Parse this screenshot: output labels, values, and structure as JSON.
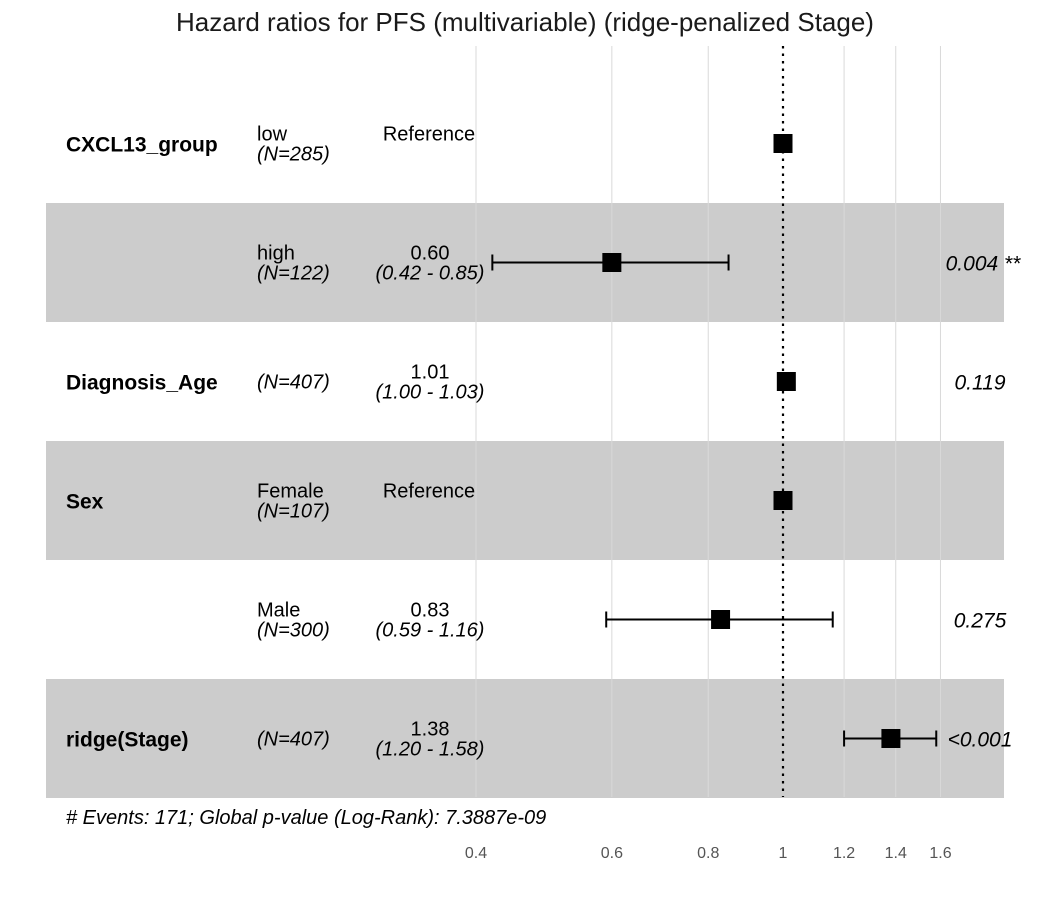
{
  "chart_data": {
    "type": "forest",
    "title": "Hazard ratios for PFS (multivariable) (ridge-penalized Stage)",
    "x_scale": "log",
    "xlim": [
      0.35,
      1.75
    ],
    "x_ticks": [
      0.4,
      0.6,
      0.8,
      1,
      1.2,
      1.4,
      1.6
    ],
    "x_tick_labels": [
      "0.4",
      "0.6",
      "0.8",
      "1",
      "1.2",
      "1.4",
      "1.6"
    ],
    "reference_line": 1,
    "grid": true,
    "rows": [
      {
        "variable": "CXCL13_group",
        "level": "low",
        "n": "(N=285)",
        "hr_text": "Reference",
        "ci_text": "",
        "p_text": "",
        "hr": 1,
        "lower": null,
        "upper": null,
        "shaded": false
      },
      {
        "variable": "",
        "level": "high",
        "n": "(N=122)",
        "hr_text": "0.60",
        "ci_text": "(0.42 - 0.85)",
        "p_text": "0.004 **",
        "hr": 0.6,
        "lower": 0.42,
        "upper": 0.85,
        "shaded": true
      },
      {
        "variable": "Diagnosis_Age",
        "level": "",
        "n": "(N=407)",
        "hr_text": "1.01",
        "ci_text": "(1.00 - 1.03)",
        "p_text": "0.119",
        "hr": 1.01,
        "lower": 1.0,
        "upper": 1.03,
        "shaded": false
      },
      {
        "variable": "Sex",
        "level": "Female",
        "n": "(N=107)",
        "hr_text": "Reference",
        "ci_text": "",
        "p_text": "",
        "hr": 1,
        "lower": null,
        "upper": null,
        "shaded": true
      },
      {
        "variable": "",
        "level": "Male",
        "n": "(N=300)",
        "hr_text": "0.83",
        "ci_text": "(0.59 - 1.16)",
        "p_text": "0.275",
        "hr": 0.83,
        "lower": 0.59,
        "upper": 1.16,
        "shaded": false
      },
      {
        "variable": "ridge(Stage)",
        "level": "",
        "n": "(N=407)",
        "hr_text": "1.38",
        "ci_text": "(1.20 - 1.58)",
        "p_text": "<0.001",
        "hr": 1.38,
        "lower": 1.2,
        "upper": 1.58,
        "shaded": true
      }
    ],
    "footnote": "# Events: 171; Global p-value (Log-Rank): 7.3887e-09"
  },
  "colors": {
    "shade": "#cccccc",
    "grid": "#d9d9d9",
    "tick_text": "#555555",
    "marker": "#000000"
  }
}
